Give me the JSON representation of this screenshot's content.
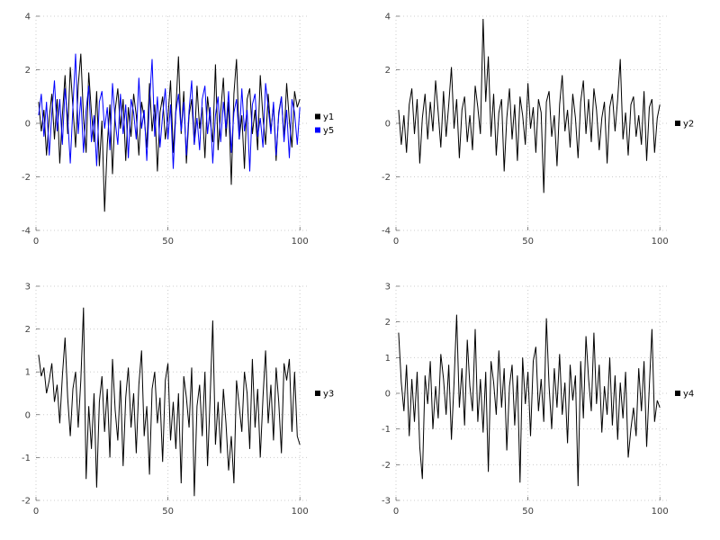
{
  "page": {
    "background": "#ffffff"
  },
  "chart_data": [
    {
      "type": "line",
      "panel": "top-left",
      "xlim": [
        0,
        103
      ],
      "ylim": [
        -4,
        4
      ],
      "xticks": [
        0,
        50,
        100
      ],
      "yticks": [
        -4,
        -2,
        0,
        2,
        4
      ],
      "grid": true,
      "legend_position": "right-center",
      "series": [
        {
          "name": "y1",
          "color": "#000000",
          "values": [
            0.8,
            -0.3,
            0.5,
            -1.2,
            0.2,
            1.1,
            -0.6,
            0.9,
            -1.5,
            0.3,
            1.8,
            -0.4,
            2.1,
            0.6,
            -0.9,
            1.4,
            2.6,
            0.2,
            -1.1,
            1.9,
            0.4,
            -0.7,
            1.2,
            -1.6,
            0.1,
            -3.3,
            -0.8,
            0.7,
            -1.9,
            0.5,
            1.3,
            -0.2,
            0.9,
            -1.4,
            0.6,
            -0.5,
            1.1,
            0.3,
            -1.2,
            0.8,
            0.2,
            -0.9,
            1.5,
            -0.3,
            0.7,
            -1.8,
            0.4,
            1.0,
            -0.6,
            0.2,
            1.6,
            -1.1,
            0.5,
            2.5,
            -0.4,
            1.2,
            -1.5,
            0.3,
            0.9,
            -0.8,
            1.4,
            -0.2,
            0.6,
            -1.3,
            1.0,
            0.1,
            -0.7,
            2.2,
            -1.0,
            0.4,
            1.7,
            -0.5,
            0.8,
            -2.3,
            1.1,
            2.4,
            -0.6,
            0.3,
            -1.7,
            0.9,
            1.3,
            -0.4,
            0.5,
            -1.0,
            1.8,
            0.2,
            -0.8,
            1.1,
            -0.3,
            0.7,
            -1.4,
            0.4,
            1.0,
            -0.6,
            1.5,
            0.1,
            -0.9,
            1.2,
            0.6,
            0.9
          ]
        },
        {
          "name": "y5",
          "color": "#0000ff",
          "values": [
            0.3,
            1.1,
            -0.5,
            0.8,
            -1.2,
            0.4,
            1.6,
            -0.3,
            0.9,
            -0.8,
            1.3,
            0.2,
            -1.5,
            0.6,
            2.6,
            -0.4,
            1.0,
            -1.1,
            0.5,
            1.4,
            -0.7,
            0.3,
            -1.6,
            0.8,
            1.2,
            -0.2,
            0.6,
            -1.0,
            1.5,
            0.1,
            -0.8,
            1.1,
            -0.4,
            0.7,
            -1.3,
            0.9,
            0.4,
            -0.6,
            1.7,
            -0.2,
            0.5,
            -1.4,
            0.8,
            2.4,
            -0.5,
            1.0,
            -0.9,
            0.3,
            1.3,
            -0.6,
            0.7,
            -1.7,
            0.4,
            1.1,
            -0.3,
            0.8,
            -1.2,
            0.5,
            1.6,
            -0.8,
            0.2,
            -1.0,
            0.9,
            1.4,
            -0.4,
            0.6,
            -1.5,
            0.3,
            1.0,
            -0.7,
            0.8,
            -0.2,
            1.2,
            -1.1,
            0.4,
            0.9,
            -0.6,
            1.3,
            -0.3,
            0.5,
            -1.8,
            0.7,
            1.1,
            -0.5,
            0.2,
            -0.9,
            1.5,
            0.6,
            -0.4,
            0.8,
            -1.2,
            0.3,
            1.0,
            -0.7,
            0.5,
            -1.3,
            0.9,
            0.4,
            -0.8,
            0.6
          ]
        }
      ]
    },
    {
      "type": "line",
      "panel": "top-right",
      "xlim": [
        0,
        103
      ],
      "ylim": [
        -4,
        4
      ],
      "xticks": [
        0,
        50,
        100
      ],
      "yticks": [
        -4,
        -2,
        0,
        2,
        4
      ],
      "grid": true,
      "legend_position": "right-center",
      "series": [
        {
          "name": "y2",
          "color": "#000000",
          "values": [
            0.5,
            -0.8,
            0.3,
            -1.1,
            0.7,
            1.3,
            -0.4,
            0.9,
            -1.5,
            0.2,
            1.1,
            -0.6,
            0.8,
            -0.3,
            1.6,
            0.4,
            -0.9,
            1.2,
            -0.5,
            0.7,
            2.1,
            -0.2,
            0.9,
            -1.3,
            0.5,
            1.0,
            -0.7,
            0.3,
            -1.0,
            1.4,
            0.6,
            -0.4,
            3.9,
            0.8,
            2.5,
            -0.5,
            1.1,
            -1.2,
            0.4,
            0.9,
            -1.8,
            0.2,
            1.3,
            -0.6,
            0.7,
            -1.4,
            1.0,
            0.3,
            -0.8,
            1.5,
            -0.2,
            0.6,
            -1.1,
            0.9,
            0.4,
            -2.6,
            0.8,
            1.2,
            -0.5,
            0.3,
            -1.6,
            0.7,
            1.8,
            -0.3,
            0.5,
            -0.9,
            1.1,
            0.2,
            -1.3,
            0.8,
            1.6,
            -0.4,
            0.9,
            -0.7,
            1.3,
            0.5,
            -1.0,
            0.2,
            0.8,
            -1.5,
            0.6,
            1.1,
            -0.3,
            0.9,
            2.4,
            -0.6,
            0.4,
            -1.2,
            0.7,
            1.0,
            -0.5,
            0.3,
            -0.8,
            1.2,
            -1.4,
            0.6,
            0.9,
            -1.1,
            0.2,
            0.7
          ]
        }
      ]
    },
    {
      "type": "line",
      "panel": "bottom-left",
      "xlim": [
        0,
        103
      ],
      "ylim": [
        -2,
        3
      ],
      "xticks": [
        0,
        50,
        100
      ],
      "yticks": [
        -2,
        -1,
        0,
        1,
        2,
        3
      ],
      "grid": true,
      "legend_position": "right-center",
      "series": [
        {
          "name": "y3",
          "color": "#000000",
          "values": [
            1.4,
            0.9,
            1.1,
            0.5,
            0.8,
            1.2,
            0.3,
            0.7,
            -0.2,
            0.9,
            1.8,
            0.4,
            -0.5,
            0.6,
            1.0,
            -0.3,
            0.8,
            2.5,
            -1.5,
            0.2,
            -0.8,
            0.5,
            -1.7,
            0.3,
            0.9,
            -0.4,
            0.6,
            -1.0,
            1.3,
            0.1,
            -0.6,
            0.8,
            -1.2,
            0.4,
            1.1,
            -0.3,
            0.5,
            -0.9,
            0.7,
            1.5,
            -0.5,
            0.2,
            -1.4,
            0.6,
            1.0,
            -0.2,
            0.4,
            -1.1,
            0.8,
            1.2,
            -0.6,
            0.3,
            -0.8,
            0.5,
            -1.6,
            0.9,
            0.4,
            -0.3,
            1.1,
            -1.9,
            0.2,
            0.7,
            -0.5,
            1.0,
            -1.2,
            0.4,
            2.2,
            -0.7,
            0.3,
            -0.9,
            0.6,
            -0.2,
            -1.3,
            -0.5,
            -1.6,
            0.8,
            0.2,
            -0.4,
            1.0,
            0.5,
            -0.8,
            1.3,
            -0.3,
            0.6,
            -1.0,
            0.4,
            1.5,
            -0.2,
            0.7,
            -0.6,
            1.1,
            0.3,
            -0.9,
            1.2,
            0.8,
            1.3,
            -0.4,
            1.0,
            -0.5,
            -0.7
          ]
        }
      ]
    },
    {
      "type": "line",
      "panel": "bottom-right",
      "xlim": [
        0,
        103
      ],
      "ylim": [
        -3,
        3
      ],
      "xticks": [
        0,
        50,
        100
      ],
      "yticks": [
        -3,
        -2,
        -1,
        0,
        1,
        2,
        3
      ],
      "grid": true,
      "legend_position": "right-center",
      "series": [
        {
          "name": "y4",
          "color": "#000000",
          "values": [
            1.7,
            0.3,
            -0.5,
            0.8,
            -1.2,
            0.4,
            -0.8,
            0.6,
            -1.5,
            -2.4,
            0.5,
            -0.3,
            0.9,
            -1.0,
            0.2,
            -0.7,
            1.1,
            0.4,
            -0.6,
            0.8,
            -1.3,
            0.3,
            2.2,
            -0.4,
            0.7,
            -0.9,
            1.5,
            0.2,
            -0.5,
            1.8,
            -0.8,
            0.4,
            -1.1,
            0.6,
            -2.2,
            0.9,
            0.3,
            -0.6,
            1.2,
            -0.4,
            0.7,
            -1.6,
            0.2,
            0.8,
            -0.9,
            0.5,
            -2.5,
            1.0,
            -0.3,
            0.6,
            -1.2,
            0.9,
            1.3,
            -0.5,
            0.4,
            -0.8,
            2.1,
            0.2,
            -1.0,
            0.7,
            -0.4,
            1.1,
            -0.6,
            0.3,
            -1.4,
            0.8,
            -0.2,
            0.5,
            -2.6,
            0.9,
            -0.7,
            1.6,
            0.4,
            -0.5,
            1.7,
            -0.3,
            0.8,
            -1.1,
            0.2,
            -0.6,
            1.0,
            -0.9,
            0.5,
            -1.3,
            0.3,
            -0.7,
            0.6,
            -1.8,
            -1.0,
            -0.4,
            -1.2,
            0.7,
            -0.5,
            0.9,
            -1.5,
            0.2,
            1.8,
            -0.8,
            -0.2,
            -0.4
          ]
        }
      ]
    }
  ],
  "style": {
    "grid_color": "#cccccc",
    "tick_color": "#404040",
    "legend_swatch_size": 6
  }
}
